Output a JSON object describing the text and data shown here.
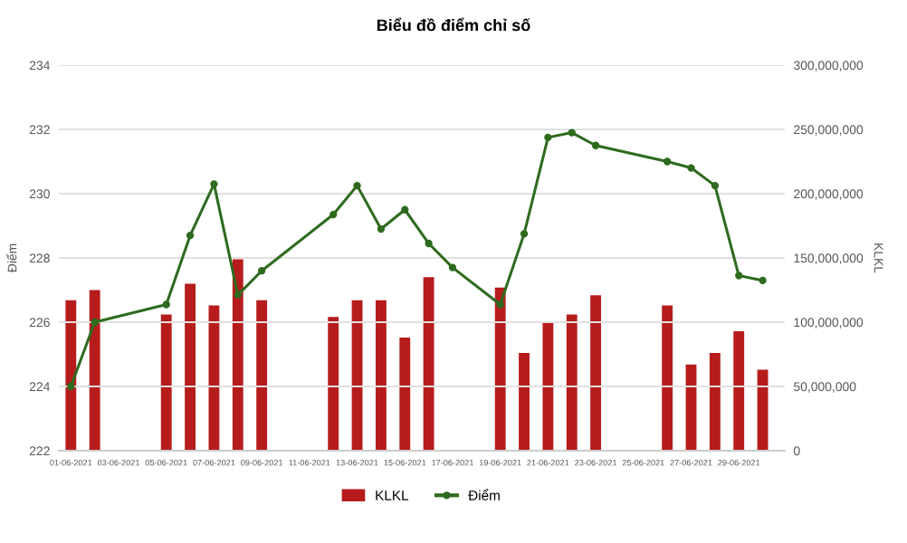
{
  "chart_data": {
    "type": "bar",
    "title": "Biểu đồ điểm chỉ số",
    "ylabel": "Điểm",
    "y2label": "KLKL",
    "x": [
      "2021-06-01",
      "2021-06-02",
      "2021-06-05",
      "2021-06-06",
      "2021-06-07",
      "2021-06-08",
      "2021-06-09",
      "2021-06-12",
      "2021-06-13",
      "2021-06-14",
      "2021-06-15",
      "2021-06-16",
      "2021-06-17",
      "2021-06-19",
      "2021-06-20",
      "2021-06-21",
      "2021-06-22",
      "2021-06-23",
      "2021-06-26",
      "2021-06-27",
      "2021-06-28",
      "2021-06-29",
      "2021-06-30"
    ],
    "series": [
      {
        "name": "KLKL",
        "axis": "y2",
        "color": "#b71c1c",
        "values": [
          117000000,
          125000000,
          106000000,
          130000000,
          113000000,
          149000000,
          117000000,
          104000000,
          117000000,
          117000000,
          88000000,
          135000000,
          null,
          127000000,
          76000000,
          100000000,
          106000000,
          121000000,
          113000000,
          67000000,
          76000000,
          93000000,
          63000000
        ]
      },
      {
        "name": "Điểm",
        "type": "line",
        "axis": "y",
        "color": "#2e6b1f",
        "marker": "circle",
        "values": [
          224.0,
          226.0,
          226.55,
          228.7,
          230.3,
          226.85,
          227.6,
          229.35,
          230.25,
          228.9,
          229.5,
          228.45,
          227.7,
          226.55,
          228.75,
          231.75,
          231.9,
          231.5,
          231.0,
          230.8,
          230.25,
          227.45,
          227.3
        ]
      }
    ],
    "xlim": [
      "2021-05-31T12:00",
      "2021-06-30T22:00"
    ],
    "xticks": [
      {
        "value": "2021-06-01",
        "label": "01-06-2021"
      },
      {
        "value": "2021-06-03",
        "label": "03-06-2021"
      },
      {
        "value": "2021-06-05",
        "label": "05-06-2021"
      },
      {
        "value": "2021-06-07",
        "label": "07-06-2021"
      },
      {
        "value": "2021-06-09",
        "label": "09-06-2021"
      },
      {
        "value": "2021-06-11",
        "label": "11-06-2021"
      },
      {
        "value": "2021-06-13",
        "label": "13-06-2021"
      },
      {
        "value": "2021-06-15",
        "label": "15-06-2021"
      },
      {
        "value": "2021-06-17",
        "label": "17-06-2021"
      },
      {
        "value": "2021-06-19",
        "label": "19-06-2021"
      },
      {
        "value": "2021-06-21",
        "label": "21-06-2021"
      },
      {
        "value": "2021-06-23",
        "label": "23-06-2021"
      },
      {
        "value": "2021-06-25",
        "label": "25-06-2021"
      },
      {
        "value": "2021-06-27",
        "label": "27-06-2021"
      },
      {
        "value": "2021-06-29",
        "label": "29-06-2021"
      }
    ],
    "ylim": [
      222,
      234
    ],
    "yticks": [
      222,
      224,
      226,
      228,
      230,
      232,
      234
    ],
    "y2lim": [
      0,
      300000000
    ],
    "y2ticks": [
      {
        "value": 0,
        "label": "0"
      },
      {
        "value": 50000000,
        "label": "50,000,000"
      },
      {
        "value": 100000000,
        "label": "100,000,000"
      },
      {
        "value": 150000000,
        "label": "150,000,000"
      },
      {
        "value": 200000000,
        "label": "200,000,000"
      },
      {
        "value": 250000000,
        "label": "250,000,000"
      },
      {
        "value": 300000000,
        "label": "300,000,000"
      }
    ],
    "grid": "y",
    "legend": "bottom"
  }
}
